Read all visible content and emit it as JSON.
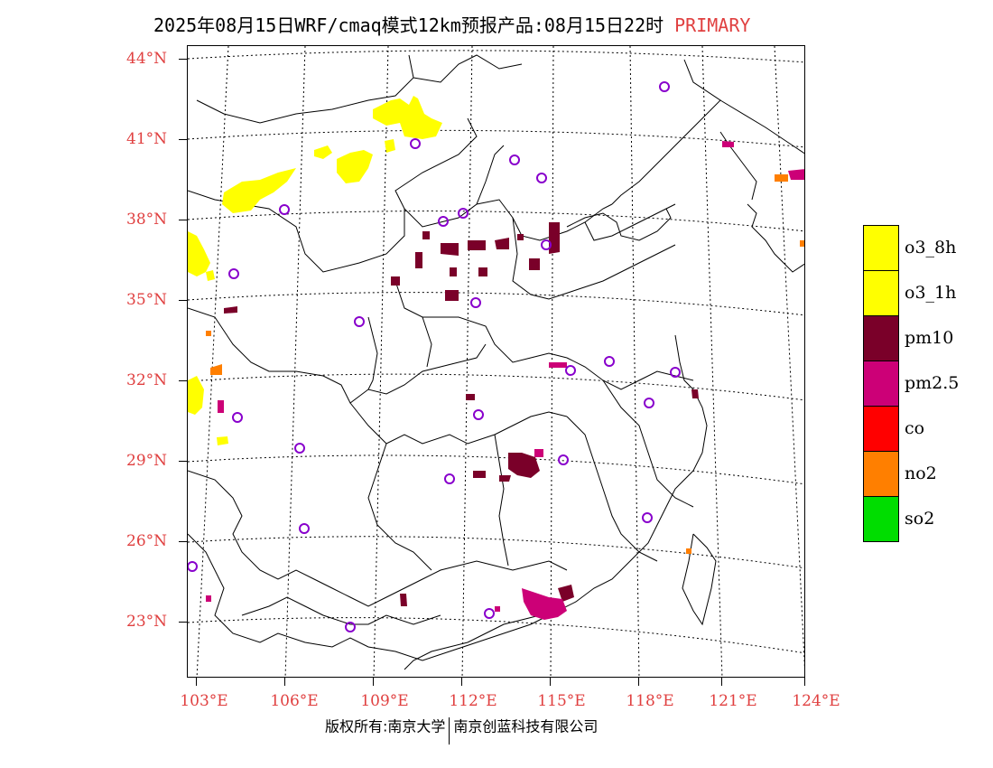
{
  "header": {
    "title": "2025年08月15日WRF/cmaq模式12km预报产品:08月15日22时",
    "tag": "PRIMARY"
  },
  "map": {
    "latitude_labels": [
      "44°N",
      "41°N",
      "38°N",
      "35°N",
      "32°N",
      "29°N",
      "26°N",
      "23°N"
    ],
    "longitude_labels": [
      "103°E",
      "106°E",
      "109°E",
      "112°E",
      "115°E",
      "118°E",
      "121°E",
      "124°E"
    ]
  },
  "legend": {
    "items": [
      {
        "label": "o3_8h",
        "color": "#ffff00"
      },
      {
        "label": "o3_1h",
        "color": "#ffff00"
      },
      {
        "label": "pm10",
        "color": "#7a0029"
      },
      {
        "label": "pm2.5",
        "color": "#cc0077"
      },
      {
        "label": "co",
        "color": "#ff0000"
      },
      {
        "label": "no2",
        "color": "#ff7f00"
      },
      {
        "label": "so2",
        "color": "#00dd00"
      }
    ]
  },
  "footer": {
    "left": "版权所有:南京大学",
    "right": "南京创蓝科技有限公司"
  }
}
